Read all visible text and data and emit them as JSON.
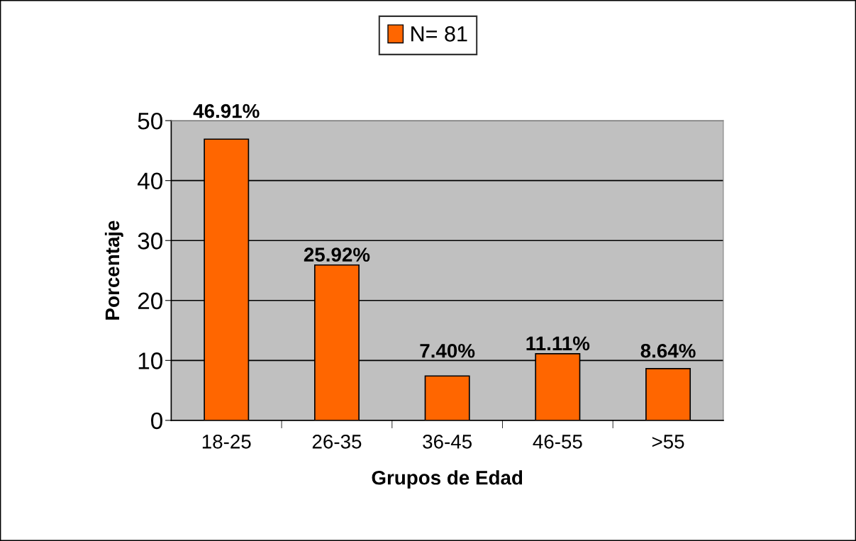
{
  "chart_data": {
    "type": "bar",
    "xlabel": "Grupos de Edad",
    "ylabel": "Porcentaje",
    "categories": [
      "18-25",
      "26-35",
      "36-45",
      "46-55",
      ">55"
    ],
    "series": [
      {
        "name": "N= 81",
        "color": "#ff6600",
        "values": [
          46.91,
          25.92,
          7.4,
          11.11,
          8.64
        ],
        "value_labels": [
          "46.91%",
          "25.92%",
          "7.40%",
          "11.11%",
          "8.64%"
        ]
      }
    ],
    "ylim": [
      0,
      50
    ],
    "yticks": [
      0,
      10,
      20,
      30,
      40,
      50
    ],
    "grid": "y",
    "legend": "top"
  }
}
